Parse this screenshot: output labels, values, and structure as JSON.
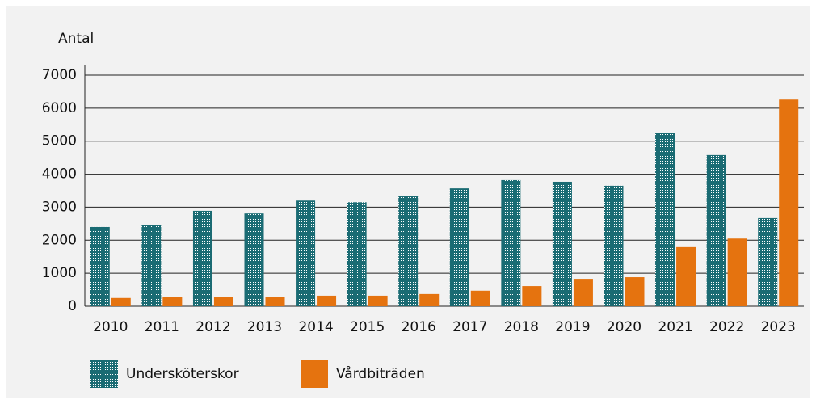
{
  "chart_data": {
    "type": "bar",
    "y_label": "Antal",
    "categories": [
      "2010",
      "2011",
      "2012",
      "2013",
      "2014",
      "2015",
      "2016",
      "2017",
      "2018",
      "2019",
      "2020",
      "2021",
      "2022",
      "2023"
    ],
    "series": [
      {
        "name": "Undersköterskor",
        "color": "#1a6b73",
        "values": [
          2400,
          2470,
          2890,
          2810,
          3200,
          3150,
          3330,
          3570,
          3820,
          3770,
          3650,
          5240,
          4580,
          2670
        ]
      },
      {
        "name": "Vårdbiträden",
        "color": "#e5730f",
        "values": [
          250,
          270,
          270,
          270,
          320,
          320,
          370,
          470,
          610,
          830,
          880,
          1790,
          2050,
          6260
        ]
      }
    ],
    "ylim": [
      0,
      7000
    ],
    "yticks": [
      0,
      1000,
      2000,
      3000,
      4000,
      5000,
      6000,
      7000
    ],
    "grid": true,
    "legend": "bottom"
  }
}
